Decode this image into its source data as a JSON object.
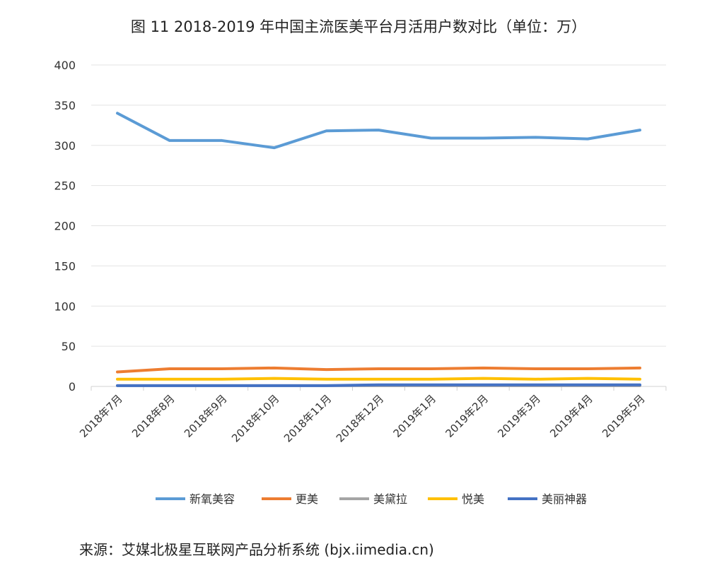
{
  "chart_data": {
    "type": "line",
    "title": "图 11   2018-2019 年中国主流医美平台月活用户数对比（单位：万）",
    "categories": [
      "2018年7月",
      "2018年8月",
      "2018年9月",
      "2018年10月",
      "2018年11月",
      "2018年12月",
      "2019年1月",
      "2019年2月",
      "2019年3月",
      "2019年4月",
      "2019年5月"
    ],
    "ylim": [
      0,
      400
    ],
    "yticks": [
      "0",
      "50",
      "100",
      "150",
      "200",
      "250",
      "300",
      "350",
      "400"
    ],
    "grid": true,
    "legend_position": "bottom",
    "series": [
      {
        "name": "新氧美容",
        "color": "#5b9bd5",
        "values": [
          340,
          306,
          306,
          297,
          318,
          319,
          309,
          309,
          310,
          308,
          319
        ]
      },
      {
        "name": "更美",
        "color": "#ed7d31",
        "values": [
          18,
          22,
          22,
          23,
          21,
          22,
          22,
          23,
          22,
          22,
          23
        ]
      },
      {
        "name": "美黛拉",
        "color": "#a5a5a5",
        "values": [
          1,
          1,
          1,
          1,
          1,
          1,
          1,
          1,
          1,
          1,
          1
        ]
      },
      {
        "name": "悦美",
        "color": "#ffc000",
        "values": [
          9,
          9,
          9,
          10,
          9,
          9,
          9,
          10,
          9,
          10,
          9
        ]
      },
      {
        "name": "美丽神器",
        "color": "#4472c4",
        "values": [
          1,
          1,
          1,
          1,
          1,
          2,
          2,
          2,
          2,
          2,
          2
        ]
      }
    ]
  },
  "source": "来源：艾媒北极星互联网产品分析系统 (bjx.iimedia.cn)"
}
